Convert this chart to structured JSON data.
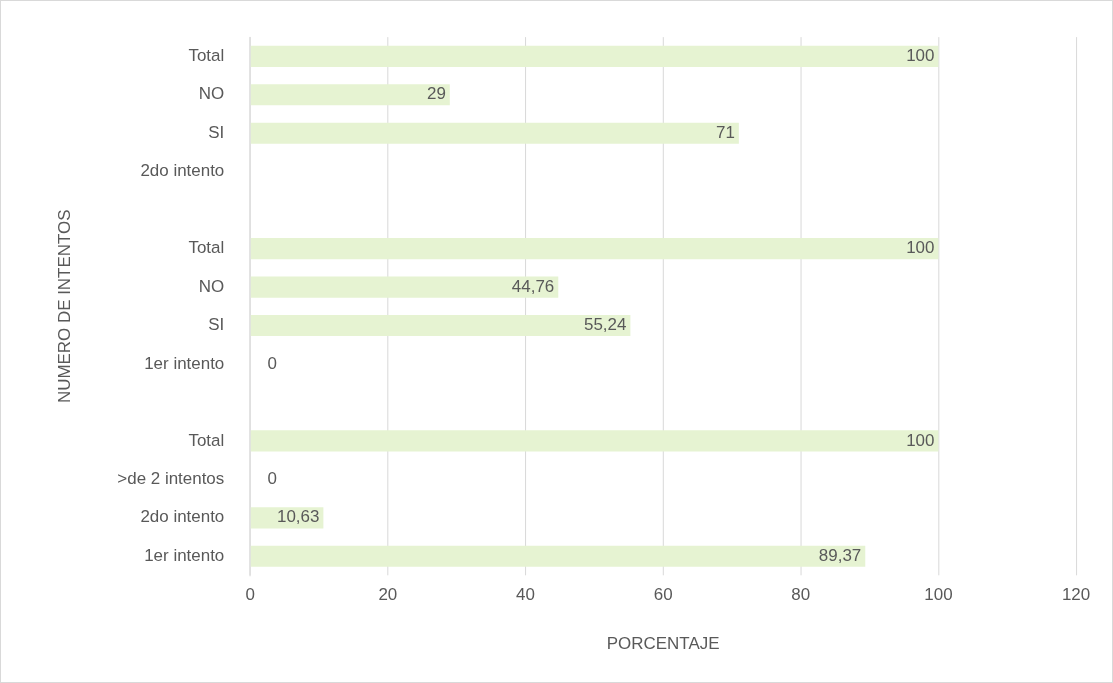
{
  "chart_data": {
    "type": "bar",
    "orientation": "horizontal",
    "xlabel": "PORCENTAJE",
    "ylabel": "NUMERO DE INTENTOS",
    "categories": [
      "Total",
      "NO",
      "SI",
      "2do intento",
      null,
      "Total",
      "NO",
      "SI",
      "1er intento",
      null,
      "Total",
      ">de 2 intentos",
      "2do intento",
      "1er intento"
    ],
    "values": [
      100,
      29,
      71,
      null,
      null,
      100,
      44.76,
      55.24,
      0,
      null,
      100,
      0,
      10.63,
      89.37
    ],
    "value_labels": [
      "100",
      "29",
      "71",
      null,
      null,
      "100",
      "44,76",
      "55,24",
      "0",
      null,
      "100",
      "0",
      "10,63",
      "89,37"
    ],
    "color": "#e6f3d2",
    "xlim": [
      0,
      120
    ],
    "xticks": [
      0,
      20,
      40,
      60,
      80,
      100,
      120
    ],
    "grid": "x",
    "legend": false
  }
}
